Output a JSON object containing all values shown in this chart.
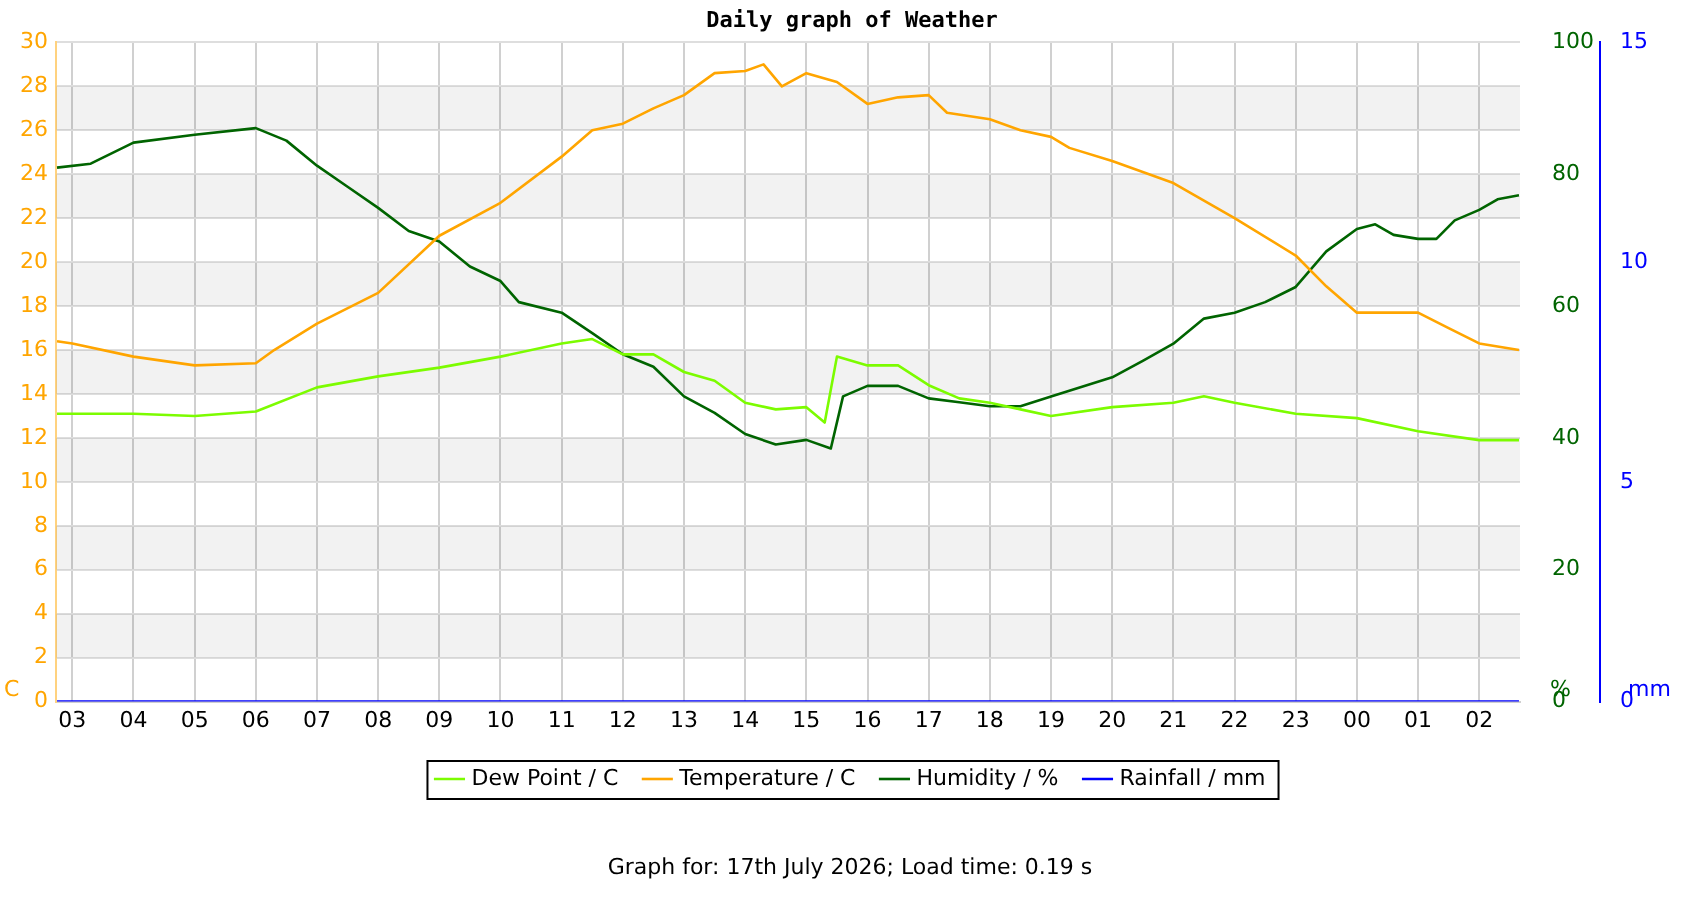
{
  "chart_data": {
    "type": "line",
    "title": "Daily graph of Weather",
    "ylabel": "C",
    "y2label": "%",
    "y3label": "mm",
    "annotations": [
      "Graph for: 17th July 2026; Load time: 0.19 s"
    ],
    "xlim": [
      "2026-07-16T02:44",
      "2026-07-17T02:40"
    ],
    "xticks": [
      {
        "value": "2026-07-16T03:00",
        "label": "03"
      },
      {
        "value": "2026-07-16T04:00",
        "label": "04"
      },
      {
        "value": "2026-07-16T05:00",
        "label": "05"
      },
      {
        "value": "2026-07-16T06:00",
        "label": "06"
      },
      {
        "value": "2026-07-16T07:00",
        "label": "07"
      },
      {
        "value": "2026-07-16T08:00",
        "label": "08"
      },
      {
        "value": "2026-07-16T09:00",
        "label": "09"
      },
      {
        "value": "2026-07-16T10:00",
        "label": "10"
      },
      {
        "value": "2026-07-16T11:00",
        "label": "11"
      },
      {
        "value": "2026-07-16T12:00",
        "label": "12"
      },
      {
        "value": "2026-07-16T13:00",
        "label": "13"
      },
      {
        "value": "2026-07-16T14:00",
        "label": "14"
      },
      {
        "value": "2026-07-16T15:00",
        "label": "15"
      },
      {
        "value": "2026-07-16T16:00",
        "label": "16"
      },
      {
        "value": "2026-07-16T17:00",
        "label": "17"
      },
      {
        "value": "2026-07-16T18:00",
        "label": "18"
      },
      {
        "value": "2026-07-16T19:00",
        "label": "19"
      },
      {
        "value": "2026-07-16T20:00",
        "label": "20"
      },
      {
        "value": "2026-07-16T21:00",
        "label": "21"
      },
      {
        "value": "2026-07-16T22:00",
        "label": "22"
      },
      {
        "value": "2026-07-16T23:00",
        "label": "23"
      },
      {
        "value": "2026-07-17T00:00",
        "label": "00"
      },
      {
        "value": "2026-07-17T01:00",
        "label": "01"
      },
      {
        "value": "2026-07-17T02:00",
        "label": "02"
      }
    ],
    "ylim": [
      0,
      30
    ],
    "yticks": [
      0,
      2,
      4,
      6,
      8,
      10,
      12,
      14,
      16,
      18,
      20,
      22,
      24,
      26,
      28,
      30
    ],
    "y2lim": [
      0,
      100
    ],
    "y2ticks": [
      0,
      20,
      40,
      60,
      80,
      100
    ],
    "y3lim": [
      0,
      15
    ],
    "y3ticks": [
      0,
      5,
      10,
      15
    ],
    "grid": true,
    "legend": "bottom",
    "marker": "none",
    "line_style": "solid",
    "series": [
      {
        "name": "Dew Point / C",
        "color": "#7cfc00",
        "x": [
          "2026-07-16T02:45",
          "2026-07-16T04:00",
          "2026-07-16T05:00",
          "2026-07-16T06:00",
          "2026-07-16T07:00",
          "2026-07-16T08:00",
          "2026-07-16T09:00",
          "2026-07-16T10:00",
          "2026-07-16T11:00",
          "2026-07-16T11:30",
          "2026-07-16T12:00",
          "2026-07-16T12:30",
          "2026-07-16T13:00",
          "2026-07-16T13:30",
          "2026-07-16T14:00",
          "2026-07-16T14:30",
          "2026-07-16T15:00",
          "2026-07-16T15:18",
          "2026-07-16T15:30",
          "2026-07-16T16:00",
          "2026-07-16T16:30",
          "2026-07-16T17:00",
          "2026-07-16T17:30",
          "2026-07-16T18:00",
          "2026-07-16T18:30",
          "2026-07-16T19:00",
          "2026-07-16T20:00",
          "2026-07-16T21:00",
          "2026-07-16T21:30",
          "2026-07-16T22:00",
          "2026-07-16T23:00",
          "2026-07-17T00:00",
          "2026-07-17T01:00",
          "2026-07-17T02:00",
          "2026-07-17T02:39"
        ],
        "values": [
          13.1,
          13.1,
          13.0,
          13.2,
          14.3,
          14.8,
          15.2,
          15.7,
          16.3,
          16.5,
          15.8,
          15.8,
          15.0,
          14.6,
          13.6,
          13.3,
          13.4,
          12.7,
          15.7,
          15.3,
          15.3,
          14.4,
          13.8,
          13.6,
          13.3,
          13.0,
          13.4,
          13.6,
          13.9,
          13.6,
          13.1,
          12.9,
          12.3,
          11.9,
          11.9
        ]
      },
      {
        "name": "Temperature / C",
        "color": "#ffa500",
        "x": [
          "2026-07-16T02:45",
          "2026-07-16T03:00",
          "2026-07-16T04:00",
          "2026-07-16T05:00",
          "2026-07-16T06:00",
          "2026-07-16T06:18",
          "2026-07-16T07:00",
          "2026-07-16T08:00",
          "2026-07-16T09:00",
          "2026-07-16T10:00",
          "2026-07-16T11:00",
          "2026-07-16T11:30",
          "2026-07-16T12:00",
          "2026-07-16T12:30",
          "2026-07-16T13:00",
          "2026-07-16T13:30",
          "2026-07-16T14:00",
          "2026-07-16T14:18",
          "2026-07-16T14:36",
          "2026-07-16T15:00",
          "2026-07-16T15:30",
          "2026-07-16T16:00",
          "2026-07-16T16:30",
          "2026-07-16T17:00",
          "2026-07-16T17:18",
          "2026-07-16T18:00",
          "2026-07-16T18:30",
          "2026-07-16T19:00",
          "2026-07-16T19:18",
          "2026-07-16T20:00",
          "2026-07-16T21:00",
          "2026-07-16T22:00",
          "2026-07-16T23:00",
          "2026-07-16T23:30",
          "2026-07-17T00:00",
          "2026-07-17T00:30",
          "2026-07-17T01:00",
          "2026-07-17T01:30",
          "2026-07-17T02:00",
          "2026-07-17T02:39"
        ],
        "values": [
          16.4,
          16.3,
          15.7,
          15.3,
          15.4,
          16.0,
          17.2,
          18.6,
          21.2,
          22.7,
          24.8,
          26.0,
          26.3,
          27.0,
          27.6,
          28.6,
          28.7,
          29.0,
          28.0,
          28.6,
          28.2,
          27.2,
          27.5,
          27.6,
          26.8,
          26.5,
          26.0,
          25.7,
          25.2,
          24.6,
          23.6,
          22.0,
          20.3,
          18.9,
          17.7,
          17.7,
          17.7,
          17.0,
          16.3,
          16.0
        ]
      },
      {
        "name": "Humidity / %",
        "color": "#006400",
        "axis": "y2",
        "x": [
          "2026-07-16T02:45",
          "2026-07-16T03:18",
          "2026-07-16T04:00",
          "2026-07-16T05:00",
          "2026-07-16T06:00",
          "2026-07-16T06:30",
          "2026-07-16T07:00",
          "2026-07-16T07:30",
          "2026-07-16T08:00",
          "2026-07-16T08:30",
          "2026-07-16T09:00",
          "2026-07-16T09:30",
          "2026-07-16T10:00",
          "2026-07-16T10:18",
          "2026-07-16T11:00",
          "2026-07-16T11:30",
          "2026-07-16T12:00",
          "2026-07-16T12:30",
          "2026-07-16T13:00",
          "2026-07-16T13:30",
          "2026-07-16T14:00",
          "2026-07-16T14:30",
          "2026-07-16T15:00",
          "2026-07-16T15:24",
          "2026-07-16T15:36",
          "2026-07-16T16:00",
          "2026-07-16T16:30",
          "2026-07-16T17:00",
          "2026-07-16T17:30",
          "2026-07-16T18:00",
          "2026-07-16T18:30",
          "2026-07-16T19:00",
          "2026-07-16T20:00",
          "2026-07-16T20:30",
          "2026-07-16T21:00",
          "2026-07-16T21:30",
          "2026-07-16T22:00",
          "2026-07-16T22:30",
          "2026-07-16T23:00",
          "2026-07-16T23:30",
          "2026-07-17T00:00",
          "2026-07-17T00:18",
          "2026-07-17T00:36",
          "2026-07-17T01:00",
          "2026-07-17T01:18",
          "2026-07-17T01:36",
          "2026-07-17T02:00",
          "2026-07-17T02:18",
          "2026-07-17T02:39"
        ],
        "values": [
          81.0,
          81.6,
          84.8,
          86.0,
          87.0,
          85.1,
          81.3,
          78.1,
          74.9,
          71.4,
          69.8,
          66.0,
          63.8,
          60.6,
          59.0,
          55.9,
          52.7,
          50.8,
          46.3,
          43.8,
          40.6,
          39.0,
          39.7,
          38.4,
          46.3,
          47.9,
          47.9,
          46.0,
          45.4,
          44.8,
          44.8,
          46.3,
          49.2,
          51.7,
          54.3,
          58.1,
          59.0,
          60.6,
          62.9,
          68.3,
          71.7,
          72.4,
          70.8,
          70.2,
          70.2,
          73.0,
          74.6,
          76.2,
          76.8
        ]
      },
      {
        "name": "Rainfall / mm",
        "color": "#0000ff",
        "axis": "y3",
        "x": [
          "2026-07-16T02:45",
          "2026-07-17T02:39"
        ],
        "values": [
          0,
          0
        ]
      }
    ]
  }
}
